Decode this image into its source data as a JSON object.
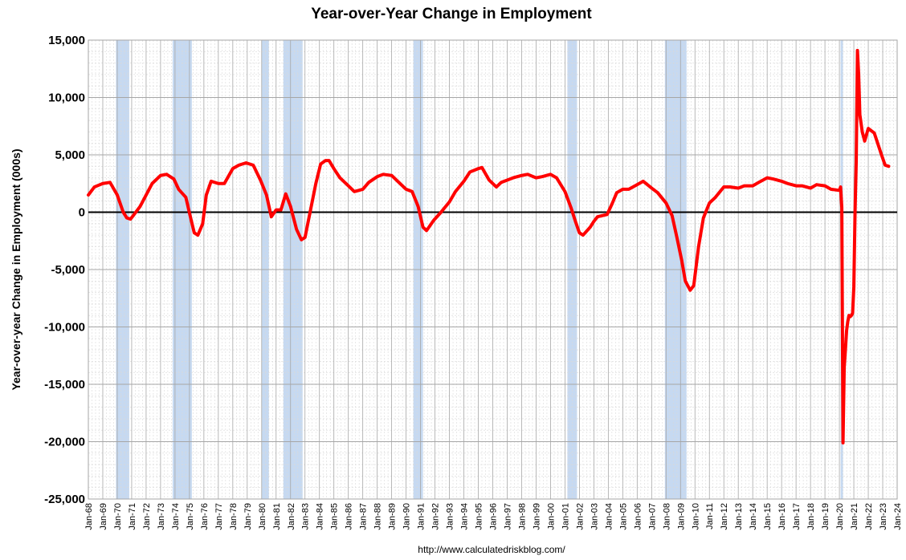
{
  "chart_data": {
    "type": "line",
    "title": "Year-over-Year Change in Employment",
    "ylabel": "Year-over-year Change in Employment (000s)",
    "xlabel": "",
    "source": "http://www.calculatedriskblog.com/",
    "ylim": [
      -25000,
      15000
    ],
    "yticks": [
      15000,
      10000,
      5000,
      0,
      -5000,
      -10000,
      -15000,
      -20000,
      -25000
    ],
    "ytick_labels": [
      "15,000",
      "10,000",
      "5,000",
      "0",
      "-5,000",
      "-10,000",
      "-15,000",
      "-20,000",
      "-25,000"
    ],
    "xlim": [
      "1968-01",
      "2024-01"
    ],
    "xtick_labels": [
      "Jan-68",
      "Jan-69",
      "Jan-70",
      "Jan-71",
      "Jan-72",
      "Jan-73",
      "Jan-74",
      "Jan-75",
      "Jan-76",
      "Jan-77",
      "Jan-78",
      "Jan-79",
      "Jan-80",
      "Jan-81",
      "Jan-82",
      "Jan-83",
      "Jan-84",
      "Jan-85",
      "Jan-86",
      "Jan-87",
      "Jan-88",
      "Jan-89",
      "Jan-90",
      "Jan-91",
      "Jan-92",
      "Jan-93",
      "Jan-94",
      "Jan-95",
      "Jan-96",
      "Jan-97",
      "Jan-98",
      "Jan-99",
      "Jan-00",
      "Jan-01",
      "Jan-02",
      "Jan-03",
      "Jan-04",
      "Jan-05",
      "Jan-06",
      "Jan-07",
      "Jan-08",
      "Jan-09",
      "Jan-10",
      "Jan-11",
      "Jan-12",
      "Jan-13",
      "Jan-14",
      "Jan-15",
      "Jan-16",
      "Jan-17",
      "Jan-18",
      "Jan-19",
      "Jan-20",
      "Jan-21",
      "Jan-22",
      "Jan-23",
      "Jan-24"
    ],
    "grid": true,
    "recessions": [
      {
        "start": "1969-12",
        "end": "1970-11"
      },
      {
        "start": "1973-11",
        "end": "1975-03"
      },
      {
        "start": "1980-01",
        "end": "1980-07"
      },
      {
        "start": "1981-07",
        "end": "1982-11"
      },
      {
        "start": "1990-07",
        "end": "1991-03"
      },
      {
        "start": "2001-03",
        "end": "2001-11"
      },
      {
        "start": "2007-12",
        "end": "2009-06"
      },
      {
        "start": "2020-02",
        "end": "2020-04"
      }
    ],
    "colors": {
      "line": "#ff0000",
      "recession": "#c6d9f1",
      "grid_major": "#a6a6a6",
      "grid_minor": "#d9d9d9",
      "zero_line": "#000000"
    },
    "series": [
      {
        "values": [
          [
            "1968-01",
            1500
          ],
          [
            "1968-06",
            2200
          ],
          [
            "1969-01",
            2500
          ],
          [
            "1969-07",
            2600
          ],
          [
            "1970-01",
            1500
          ],
          [
            "1970-06",
            0
          ],
          [
            "1970-09",
            -500
          ],
          [
            "1970-12",
            -600
          ],
          [
            "1971-03",
            -200
          ],
          [
            "1971-08",
            500
          ],
          [
            "1972-01",
            1500
          ],
          [
            "1972-06",
            2500
          ],
          [
            "1973-01",
            3200
          ],
          [
            "1973-06",
            3300
          ],
          [
            "1973-12",
            2900
          ],
          [
            "1974-04",
            2000
          ],
          [
            "1974-10",
            1300
          ],
          [
            "1975-02",
            -500
          ],
          [
            "1975-05",
            -1800
          ],
          [
            "1975-08",
            -2000
          ],
          [
            "1975-12",
            -1000
          ],
          [
            "1976-03",
            1500
          ],
          [
            "1976-07",
            2700
          ],
          [
            "1977-01",
            2500
          ],
          [
            "1977-06",
            2500
          ],
          [
            "1978-01",
            3800
          ],
          [
            "1978-06",
            4100
          ],
          [
            "1978-12",
            4300
          ],
          [
            "1979-06",
            4100
          ],
          [
            "1979-12",
            2800
          ],
          [
            "1980-05",
            1500
          ],
          [
            "1980-09",
            -400
          ],
          [
            "1981-01",
            200
          ],
          [
            "1981-05",
            200
          ],
          [
            "1981-09",
            1600
          ],
          [
            "1982-01",
            500
          ],
          [
            "1982-06",
            -1500
          ],
          [
            "1982-10",
            -2400
          ],
          [
            "1983-01",
            -2200
          ],
          [
            "1983-06",
            400
          ],
          [
            "1983-10",
            2500
          ],
          [
            "1984-02",
            4200
          ],
          [
            "1984-06",
            4500
          ],
          [
            "1984-09",
            4500
          ],
          [
            "1985-01",
            3800
          ],
          [
            "1985-06",
            3000
          ],
          [
            "1986-01",
            2300
          ],
          [
            "1986-06",
            1800
          ],
          [
            "1987-01",
            2000
          ],
          [
            "1987-06",
            2600
          ],
          [
            "1988-01",
            3100
          ],
          [
            "1988-06",
            3300
          ],
          [
            "1989-01",
            3200
          ],
          [
            "1989-06",
            2700
          ],
          [
            "1990-01",
            2000
          ],
          [
            "1990-06",
            1800
          ],
          [
            "1990-11",
            500
          ],
          [
            "1991-03",
            -1300
          ],
          [
            "1991-06",
            -1600
          ],
          [
            "1991-12",
            -700
          ],
          [
            "1992-06",
            0
          ],
          [
            "1993-01",
            900
          ],
          [
            "1993-06",
            1800
          ],
          [
            "1994-01",
            2700
          ],
          [
            "1994-06",
            3500
          ],
          [
            "1995-01",
            3800
          ],
          [
            "1995-04",
            3900
          ],
          [
            "1995-10",
            2800
          ],
          [
            "1996-04",
            2200
          ],
          [
            "1996-08",
            2600
          ],
          [
            "1997-01",
            2800
          ],
          [
            "1997-06",
            3000
          ],
          [
            "1998-01",
            3200
          ],
          [
            "1998-06",
            3300
          ],
          [
            "1999-01",
            3000
          ],
          [
            "1999-06",
            3100
          ],
          [
            "2000-01",
            3300
          ],
          [
            "2000-06",
            3000
          ],
          [
            "2001-01",
            1800
          ],
          [
            "2001-06",
            400
          ],
          [
            "2001-10",
            -900
          ],
          [
            "2002-01",
            -1800
          ],
          [
            "2002-04",
            -2000
          ],
          [
            "2002-10",
            -1300
          ],
          [
            "2003-01",
            -800
          ],
          [
            "2003-04",
            -400
          ],
          [
            "2003-12",
            -200
          ],
          [
            "2004-04",
            700
          ],
          [
            "2004-08",
            1700
          ],
          [
            "2005-01",
            2000
          ],
          [
            "2005-06",
            2000
          ],
          [
            "2006-01",
            2400
          ],
          [
            "2006-06",
            2700
          ],
          [
            "2007-01",
            2100
          ],
          [
            "2007-06",
            1700
          ],
          [
            "2008-01",
            800
          ],
          [
            "2008-06",
            -300
          ],
          [
            "2008-10",
            -2200
          ],
          [
            "2009-02",
            -4200
          ],
          [
            "2009-05",
            -6000
          ],
          [
            "2009-09",
            -6800
          ],
          [
            "2009-12",
            -6400
          ],
          [
            "2010-04",
            -3000
          ],
          [
            "2010-08",
            -500
          ],
          [
            "2011-01",
            800
          ],
          [
            "2011-06",
            1300
          ],
          [
            "2012-01",
            2200
          ],
          [
            "2012-06",
            2200
          ],
          [
            "2013-01",
            2100
          ],
          [
            "2013-06",
            2300
          ],
          [
            "2014-01",
            2300
          ],
          [
            "2014-06",
            2600
          ],
          [
            "2015-01",
            3000
          ],
          [
            "2015-06",
            2900
          ],
          [
            "2016-01",
            2700
          ],
          [
            "2016-06",
            2500
          ],
          [
            "2017-01",
            2300
          ],
          [
            "2017-06",
            2300
          ],
          [
            "2018-01",
            2100
          ],
          [
            "2018-06",
            2400
          ],
          [
            "2019-01",
            2300
          ],
          [
            "2019-06",
            2000
          ],
          [
            "2020-01",
            1900
          ],
          [
            "2020-02",
            2200
          ],
          [
            "2020-03",
            400
          ],
          [
            "2020-04",
            -20100
          ],
          [
            "2020-05",
            -13500
          ],
          [
            "2020-06",
            -12000
          ],
          [
            "2020-07",
            -10300
          ],
          [
            "2020-08",
            -9500
          ],
          [
            "2020-09",
            -9000
          ],
          [
            "2020-10",
            -9100
          ],
          [
            "2020-11",
            -9000
          ],
          [
            "2020-12",
            -8800
          ],
          [
            "2021-01",
            -6500
          ],
          [
            "2021-02",
            0
          ],
          [
            "2021-03",
            4500
          ],
          [
            "2021-04",
            14100
          ],
          [
            "2021-05",
            12000
          ],
          [
            "2021-06",
            8500
          ],
          [
            "2021-08",
            7000
          ],
          [
            "2021-10",
            6200
          ],
          [
            "2022-01",
            7300
          ],
          [
            "2022-06",
            6900
          ],
          [
            "2022-12",
            5000
          ],
          [
            "2023-03",
            4100
          ],
          [
            "2023-06",
            4000
          ]
        ]
      }
    ]
  }
}
